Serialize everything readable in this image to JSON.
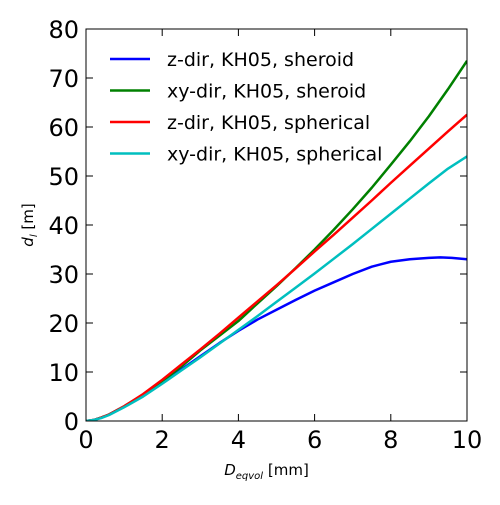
{
  "chart_data": {
    "type": "line",
    "xlabel": {
      "var": "D",
      "sub": "eqvol",
      "unit": "[mm]"
    },
    "ylabel": {
      "var": "d",
      "sub": "l",
      "unit": "[m]"
    },
    "xlim": [
      0,
      10
    ],
    "ylim": [
      0,
      80
    ],
    "xticks": [
      0,
      2,
      4,
      6,
      8,
      10
    ],
    "yticks": [
      0,
      10,
      20,
      30,
      40,
      50,
      60,
      70,
      80
    ],
    "grid": false,
    "legend_position": "top-left",
    "series": [
      {
        "name": "z-dir, KH05, sheroid",
        "color": "#0000ff",
        "x": [
          0,
          0.2,
          0.4,
          0.6,
          1,
          1.5,
          2,
          2.5,
          3,
          3.5,
          4,
          4.5,
          5,
          5.5,
          6,
          6.5,
          7,
          7.5,
          8,
          8.5,
          9,
          9.3,
          9.6,
          10
        ],
        "y": [
          0,
          0.2,
          0.7,
          1.3,
          3,
          5.3,
          7.8,
          10.5,
          13.2,
          15.9,
          18.4,
          20.7,
          22.7,
          24.7,
          26.6,
          28.3,
          30,
          31.5,
          32.5,
          33,
          33.3,
          33.4,
          33.3,
          33
        ]
      },
      {
        "name": "xy-dir, KH05, sheroid",
        "color": "#008000",
        "x": [
          0,
          0.2,
          0.4,
          0.6,
          1,
          1.5,
          2,
          2.5,
          3,
          3.5,
          4,
          4.5,
          5,
          5.5,
          6,
          6.5,
          7,
          7.5,
          8,
          8.5,
          9,
          9.5,
          10
        ],
        "y": [
          0,
          0.2,
          0.7,
          1.3,
          3,
          5.4,
          8.1,
          11.1,
          14.4,
          17.4,
          20.4,
          24,
          27.5,
          31.2,
          35,
          39,
          43.2,
          47.6,
          52.3,
          57.1,
          62.2,
          67.7,
          73.5
        ]
      },
      {
        "name": "z-dir, KH05, spherical",
        "color": "#ff0000",
        "x": [
          0,
          0.2,
          0.4,
          0.6,
          1,
          1.5,
          2,
          2.5,
          3,
          3.5,
          4,
          4.5,
          5,
          5.5,
          6,
          6.5,
          7,
          7.5,
          8,
          8.5,
          9,
          9.5,
          10
        ],
        "y": [
          0,
          0.2,
          0.7,
          1.3,
          3,
          5.5,
          8.4,
          11.5,
          14.6,
          17.8,
          21.1,
          24.4,
          27.7,
          31.1,
          34.6,
          38,
          41.5,
          45,
          48.6,
          52.1,
          55.6,
          59.1,
          62.5
        ]
      },
      {
        "name": "xy-dir, KH05, spherical",
        "color": "#00bfbf",
        "x": [
          0,
          0.2,
          0.4,
          0.6,
          1,
          1.5,
          2,
          2.5,
          3,
          3.5,
          4,
          4.5,
          5,
          5.5,
          6,
          6.5,
          7,
          7.5,
          8,
          8.5,
          9,
          9.5,
          10
        ],
        "y": [
          0,
          0.2,
          0.6,
          1.2,
          2.8,
          5,
          7.6,
          10.3,
          13,
          15.8,
          18.6,
          21.4,
          24.3,
          27.2,
          30.1,
          33.1,
          36.1,
          39.2,
          42.3,
          45.4,
          48.5,
          51.5,
          54
        ]
      }
    ]
  }
}
